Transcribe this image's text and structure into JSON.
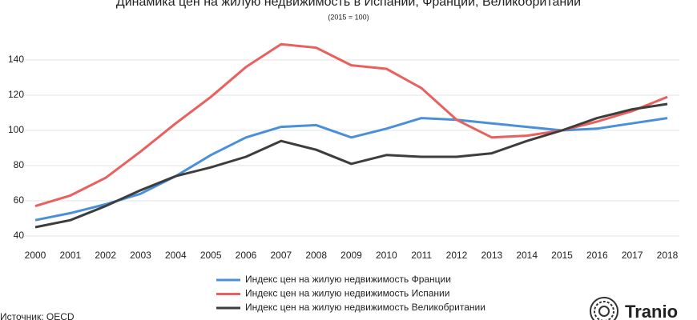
{
  "chart_data": {
    "type": "line",
    "title": "Динамика цен на жилую недвижимость в Испании, Франции, Великобритании",
    "subtitle": "(2015 = 100)",
    "categories": [
      "2000",
      "2001",
      "2002",
      "2003",
      "2004",
      "2005",
      "2006",
      "2007",
      "2008",
      "2009",
      "2010",
      "2011",
      "2012",
      "2013",
      "2014",
      "2015",
      "2016",
      "2017",
      "2018"
    ],
    "series": [
      {
        "name": "Индекс цен на жилую недвижимость Франции",
        "color": "#4a90d9",
        "values": [
          49,
          53,
          58,
          64,
          74,
          86,
          96,
          102,
          103,
          96,
          101,
          107,
          106,
          104,
          102,
          100,
          101,
          104,
          107
        ]
      },
      {
        "name": "Индекс цен на жилую недвижимость Испании",
        "color": "#e8615f",
        "values": [
          57,
          63,
          73,
          88,
          104,
          119,
          136,
          149,
          147,
          137,
          135,
          124,
          106,
          96,
          97,
          100,
          105,
          111,
          119
        ]
      },
      {
        "name": "Индекс цен на жилую недвижимость Великобритании",
        "color": "#3d3d3d",
        "values": [
          45,
          49,
          57,
          66,
          74,
          79,
          85,
          94,
          89,
          81,
          86,
          85,
          85,
          87,
          94,
          100,
          107,
          112,
          115
        ]
      }
    ],
    "ylim": [
      40,
      150
    ],
    "yticks": [
      40,
      60,
      80,
      100,
      120,
      140
    ],
    "grid": true,
    "source": "Источник: OECD",
    "logo": "Tranio"
  }
}
